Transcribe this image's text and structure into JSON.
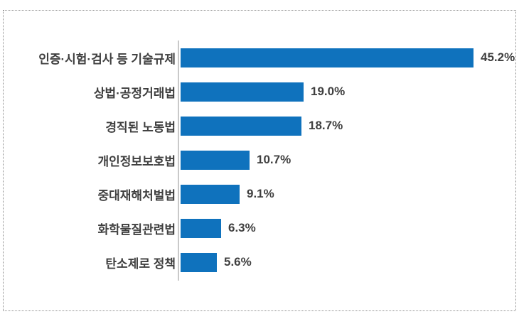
{
  "chart_data": {
    "type": "bar",
    "orientation": "horizontal",
    "title": "",
    "xlabel": "",
    "ylabel": "",
    "grid": false,
    "legend": "none",
    "axis_range_percent": [
      0,
      50
    ],
    "categories": [
      "인증·시험·검사 등 기술규제",
      "상법·공정거래법",
      "경직된 노동법",
      "개인정보보호법",
      "중대재해처벌법",
      "화학물질관련법",
      "탄소제로 정책"
    ],
    "values": [
      45.2,
      19.0,
      18.7,
      10.7,
      9.1,
      6.3,
      5.6
    ],
    "value_labels": [
      "45.2%",
      "19.0%",
      "18.7%",
      "10.7%",
      "9.1%",
      "6.3%",
      "5.6%"
    ],
    "colors": {
      "bar": "#0f72bd",
      "category_text": "#3f3f3f",
      "value_text": "#3f3f3f",
      "axis_line": "#c9c9c9",
      "frame_border": "#8f8f8f",
      "background": "#ffffff"
    }
  }
}
